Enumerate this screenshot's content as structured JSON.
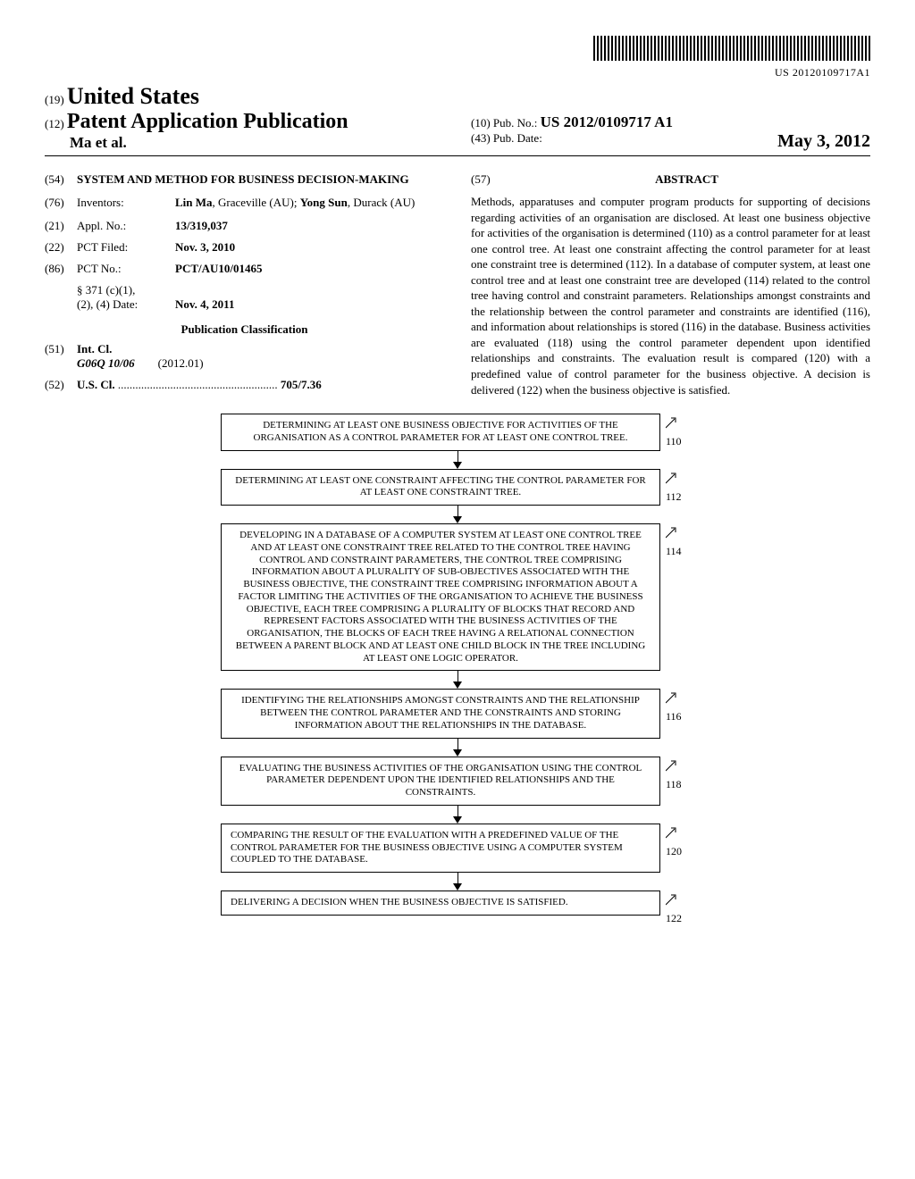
{
  "barcode_id": "US 20120109717A1",
  "header": {
    "country_code": "(19)",
    "country": "United States",
    "pub_type_code": "(12)",
    "pub_type": "Patent Application Publication",
    "authors": "Ma et al.",
    "pub_no_code": "(10)",
    "pub_no_label": "Pub. No.:",
    "pub_no": "US 2012/0109717 A1",
    "pub_date_code": "(43)",
    "pub_date_label": "Pub. Date:",
    "pub_date": "May 3, 2012"
  },
  "title": {
    "code": "(54)",
    "text": "SYSTEM AND METHOD FOR BUSINESS DECISION-MAKING"
  },
  "inventors": {
    "code": "(76)",
    "label": "Inventors:",
    "value_html": "Lin Ma, Graceville (AU); Yong Sun, Durack (AU)"
  },
  "appl_no": {
    "code": "(21)",
    "label": "Appl. No.:",
    "value": "13/319,037"
  },
  "pct_filed": {
    "code": "(22)",
    "label": "PCT Filed:",
    "value": "Nov. 3, 2010"
  },
  "pct_no": {
    "code": "(86)",
    "label": "PCT No.:",
    "value": "PCT/AU10/01465"
  },
  "pct_371": {
    "label1": "§ 371 (c)(1),",
    "label2": "(2), (4) Date:",
    "value": "Nov. 4, 2011"
  },
  "classification_heading": "Publication Classification",
  "int_cl": {
    "code": "(51)",
    "label": "Int. Cl.",
    "class": "G06Q 10/06",
    "year": "(2012.01)"
  },
  "us_cl": {
    "code": "(52)",
    "label": "U.S. Cl.",
    "value": "705/7.36"
  },
  "abstract": {
    "code": "(57)",
    "heading": "ABSTRACT",
    "text": "Methods, apparatuses and computer program products for supporting of decisions regarding activities of an organisation are disclosed. At least one business objective for activities of the organisation is determined (110) as a control parameter for at least one control tree. At least one constraint affecting the control parameter for at least one constraint tree is determined (112). In a database of computer system, at least one control tree and at least one constraint tree are developed (114) related to the control tree having control and constraint parameters. Relationships amongst constraints and the relationship between the control parameter and constraints are identified (116), and information about relationships is stored (116) in the database. Business activities are evaluated (118) using the control parameter dependent upon identified relationships and constraints. The evaluation result is compared (120) with a predefined value of control parameter for the business objective. A decision is delivered (122) when the business objective is satisfied."
  },
  "flow": [
    {
      "ref": "110",
      "align": "center",
      "text": "DETERMINING AT LEAST ONE BUSINESS OBJECTIVE FOR ACTIVITIES OF THE ORGANISATION AS A CONTROL PARAMETER FOR AT LEAST ONE CONTROL TREE."
    },
    {
      "ref": "112",
      "align": "center",
      "text": "DETERMINING AT LEAST ONE CONSTRAINT AFFECTING THE CONTROL PARAMETER FOR AT LEAST ONE CONSTRAINT TREE."
    },
    {
      "ref": "114",
      "align": "center",
      "text": "DEVELOPING IN A DATABASE OF A COMPUTER SYSTEM AT LEAST ONE CONTROL TREE AND AT LEAST ONE CONSTRAINT TREE RELATED TO THE CONTROL TREE HAVING CONTROL AND CONSTRAINT PARAMETERS, THE CONTROL TREE COMPRISING INFORMATION ABOUT A PLURALITY OF SUB-OBJECTIVES ASSOCIATED WITH THE BUSINESS OBJECTIVE, THE CONSTRAINT TREE COMPRISING INFORMATION ABOUT A FACTOR LIMITING THE ACTIVITIES OF THE ORGANISATION TO ACHIEVE THE BUSINESS OBJECTIVE, EACH TREE COMPRISING A PLURALITY OF BLOCKS THAT RECORD AND REPRESENT FACTORS ASSOCIATED WITH THE BUSINESS ACTIVITIES OF THE ORGANISATION, THE BLOCKS OF EACH TREE HAVING A RELATIONAL CONNECTION BETWEEN A PARENT BLOCK AND AT LEAST ONE CHILD BLOCK IN THE TREE INCLUDING AT LEAST ONE LOGIC OPERATOR."
    },
    {
      "ref": "116",
      "align": "center",
      "text": "IDENTIFYING THE RELATIONSHIPS AMONGST CONSTRAINTS AND THE RELATIONSHIP BETWEEN THE CONTROL PARAMETER AND THE CONSTRAINTS AND STORING INFORMATION ABOUT THE RELATIONSHIPS IN THE DATABASE."
    },
    {
      "ref": "118",
      "align": "center",
      "text": "EVALUATING THE BUSINESS ACTIVITIES OF THE ORGANISATION USING THE CONTROL PARAMETER DEPENDENT UPON THE IDENTIFIED RELATIONSHIPS AND THE CONSTRAINTS."
    },
    {
      "ref": "120",
      "align": "left",
      "text": "COMPARING THE RESULT OF THE EVALUATION WITH A PREDEFINED VALUE OF THE CONTROL PARAMETER FOR THE BUSINESS OBJECTIVE USING A COMPUTER SYSTEM COUPLED TO THE DATABASE."
    },
    {
      "ref": "122",
      "align": "left",
      "text": "DELIVERING A DECISION WHEN THE BUSINESS OBJECTIVE IS SATISFIED."
    }
  ]
}
